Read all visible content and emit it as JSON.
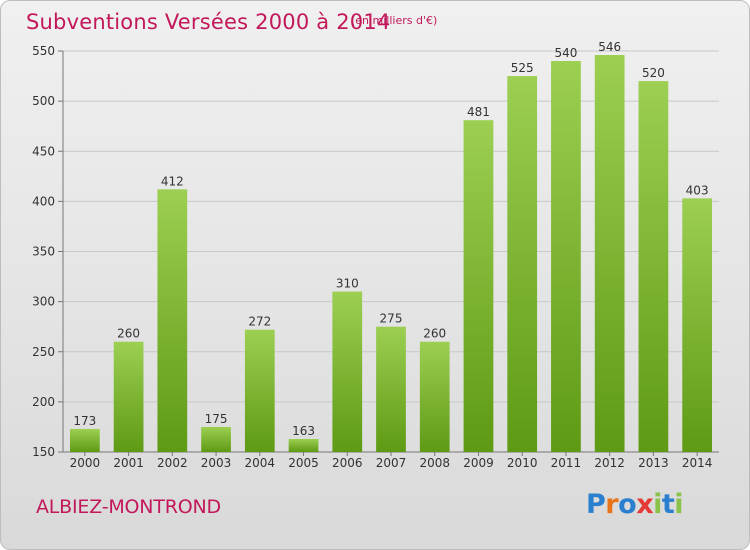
{
  "header": {
    "title": "Subventions Versées 2000 à 2014",
    "subtitle": "(en milliers d'€)"
  },
  "footer": {
    "commune": "ALBIEZ-MONTROND",
    "logo": "Proxiti"
  },
  "colors": {
    "accent": "#c2185b",
    "bar_top": "#9ccf52",
    "bar_bottom": "#5e9a14"
  },
  "chart_data": {
    "type": "bar",
    "title": "Subventions Versées 2000 à 2014",
    "subtitle": "(en milliers d'€)",
    "categories": [
      "2000",
      "2001",
      "2002",
      "2003",
      "2004",
      "2005",
      "2006",
      "2007",
      "2008",
      "2009",
      "2010",
      "2011",
      "2012",
      "2013",
      "2014"
    ],
    "values": [
      173,
      260,
      412,
      175,
      272,
      163,
      310,
      275,
      260,
      481,
      525,
      540,
      546,
      520,
      403
    ],
    "ylim": [
      150,
      550
    ],
    "yticks": [
      150,
      200,
      250,
      300,
      350,
      400,
      450,
      500,
      550
    ],
    "grid": true,
    "xlabel": "",
    "ylabel": ""
  }
}
